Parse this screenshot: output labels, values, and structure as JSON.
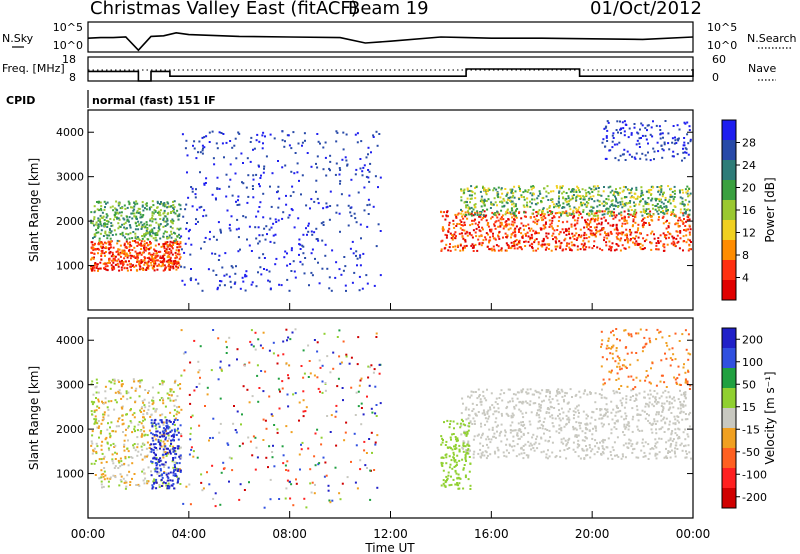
{
  "header": {
    "title": "Christmas Valley East (fitACF)",
    "beam": "Beam 19",
    "date": "01/Oct/2012"
  },
  "chart_data": [
    {
      "type": "line",
      "panel": "noise",
      "left_label": "N.Sky",
      "right_label": "N.Search",
      "left_ticks": [
        "10^5",
        "10^0"
      ],
      "right_ticks": [
        "10^5",
        "10^0"
      ],
      "x": [
        "00:00",
        "00:30",
        "01:00",
        "01:30",
        "02:00",
        "02:30",
        "03:00",
        "03:30",
        "04:00",
        "06:00",
        "08:00",
        "10:00",
        "11:00",
        "12:00",
        "14:00",
        "15:00",
        "16:00",
        "18:00",
        "20:00",
        "22:00",
        "24:00"
      ],
      "series": [
        {
          "values": [
            2.3,
            2.4,
            2.4,
            2.5,
            0.3,
            2.6,
            2.7,
            3.2,
            2.9,
            2.6,
            2.5,
            2.4,
            1.5,
            1.8,
            2.5,
            2.4,
            2.3,
            2.3,
            2.2,
            2.1,
            2.5
          ]
        }
      ]
    },
    {
      "type": "line",
      "panel": "frequency",
      "left_label": "Freq. [MHz]",
      "right_label": "Nave",
      "left_ticks": [
        "18",
        "8"
      ],
      "right_ticks": [
        "60",
        "0"
      ],
      "x": [
        "00:00",
        "01:45",
        "02:00",
        "02:30",
        "03:15",
        "12:00",
        "14:00",
        "15:00",
        "19:00",
        "19:30",
        "24:00"
      ],
      "series": [
        {
          "values": [
            12,
            12,
            8,
            12,
            10,
            10,
            10,
            13,
            13,
            10,
            13
          ]
        }
      ]
    },
    {
      "type": "heatmap",
      "panel": "power",
      "cpid_label": "CPID",
      "cpid_value": "normal (fast) 151 IF",
      "ylabel": "Slant Range [km]",
      "ylim": [
        0,
        4500
      ],
      "yticks": [
        1000,
        2000,
        3000,
        4000
      ],
      "colorbar_label": "Power [dB]",
      "colorbar_ticks": [
        4,
        8,
        12,
        16,
        20,
        24,
        28
      ],
      "colorbar_colors": [
        "#1e1ef0",
        "#284aa8",
        "#2e7c78",
        "#3aa040",
        "#9ac830",
        "#f0d020",
        "#ff8c00",
        "#ff3010",
        "#e00000"
      ]
    },
    {
      "type": "heatmap",
      "panel": "velocity",
      "ylabel": "Slant Range [km]",
      "ylim": [
        0,
        4500
      ],
      "yticks": [
        1000,
        2000,
        3000,
        4000
      ],
      "colorbar_label": "Velocity [m s⁻¹]",
      "colorbar_ticks": [
        200,
        100,
        50,
        15,
        -15,
        -50,
        -100,
        -200
      ],
      "colorbar_colors": [
        "#2020c8",
        "#3050e0",
        "#20a040",
        "#90d030",
        "#c8c8c0",
        "#f0a020",
        "#ff6020",
        "#ff2020",
        "#d00000"
      ]
    }
  ],
  "x_axis": {
    "ticks": [
      "00:00",
      "04:00",
      "08:00",
      "12:00",
      "16:00",
      "20:00",
      "00:00"
    ],
    "label": "Time UT"
  },
  "legend": {
    "n_search_style": "dotted",
    "nave_style": "dotted"
  }
}
